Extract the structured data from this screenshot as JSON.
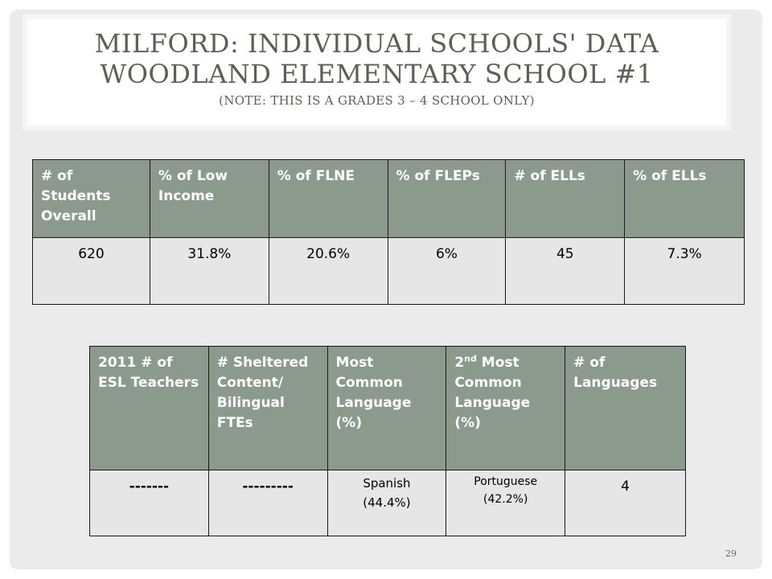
{
  "title": {
    "line1": "MILFORD:  INDIVIDUAL SCHOOLS' DATA",
    "line2": "WOODLAND ELEMENTARY SCHOOL #1",
    "note": "(NOTE:  THIS IS A GRADES 3 – 4 SCHOOL ONLY)"
  },
  "table1": {
    "headers": [
      "# of Students Overall",
      "% of Low Income",
      "% of FLNE",
      "% of FLEPs",
      "# of ELLs",
      "% of ELLs"
    ],
    "row": [
      "620",
      "31.8%",
      "20.6%",
      "6%",
      "45",
      "7.3%"
    ]
  },
  "table2": {
    "headers": {
      "h0": "2011  # of ESL Teachers",
      "h1": "# Sheltered Content/ Bilingual FTEs",
      "h2": "Most Common Language (%)",
      "h3_sup": "nd",
      "h3_pre": "2",
      "h3_post": " Most Common Language (%)",
      "h4": "# of Languages"
    },
    "row": {
      "c0": "-------",
      "c1": "---------",
      "c2_line1": "Spanish",
      "c2_line2": "(44.4%)",
      "c3_line1": "Portuguese",
      "c3_line2": "(42.2%)",
      "c4": "4"
    }
  },
  "page_number": "29"
}
